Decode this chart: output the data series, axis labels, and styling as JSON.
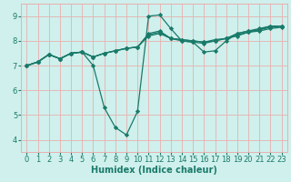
{
  "bg_color": "#cff0ec",
  "grid_color": "#e8b0b0",
  "line_color": "#1a7a6a",
  "line_width": 0.9,
  "marker": "D",
  "marker_size": 2.2,
  "xlabel": "Humidex (Indice chaleur)",
  "xlabel_fontsize": 7,
  "tick_fontsize": 6,
  "xlim": [
    -0.5,
    23.5
  ],
  "ylim": [
    3.5,
    9.5
  ],
  "xticks": [
    0,
    1,
    2,
    3,
    4,
    5,
    6,
    7,
    8,
    9,
    10,
    11,
    12,
    13,
    14,
    15,
    16,
    17,
    18,
    19,
    20,
    21,
    22,
    23
  ],
  "yticks": [
    4,
    5,
    6,
    7,
    8,
    9
  ],
  "series": [
    {
      "x": [
        0,
        1,
        2,
        3,
        4,
        5,
        6,
        7,
        8,
        9,
        10,
        11,
        12,
        13,
        14,
        15,
        16,
        17,
        18,
        19,
        20,
        21,
        22,
        23
      ],
      "y": [
        7.0,
        7.15,
        7.45,
        7.28,
        7.5,
        7.55,
        7.0,
        5.3,
        4.5,
        4.2,
        5.15,
        9.0,
        9.05,
        8.5,
        8.0,
        7.95,
        7.55,
        7.6,
        8.0,
        8.3,
        8.4,
        8.5,
        8.6,
        8.6
      ]
    },
    {
      "x": [
        0,
        1,
        2,
        3,
        4,
        5,
        6,
        7,
        8,
        9,
        10,
        11,
        12,
        13,
        14,
        15,
        16,
        17,
        18,
        19,
        20,
        21,
        22,
        23
      ],
      "y": [
        7.0,
        7.15,
        7.45,
        7.28,
        7.5,
        7.55,
        7.35,
        7.5,
        7.6,
        7.7,
        7.75,
        8.3,
        8.4,
        8.1,
        8.05,
        8.0,
        7.95,
        8.05,
        8.1,
        8.3,
        8.4,
        8.45,
        8.6,
        8.6
      ]
    },
    {
      "x": [
        0,
        1,
        2,
        3,
        4,
        5,
        6,
        7,
        8,
        9,
        10,
        11,
        12,
        13,
        14,
        15,
        16,
        17,
        18,
        19,
        20,
        21,
        22,
        23
      ],
      "y": [
        7.0,
        7.15,
        7.45,
        7.28,
        7.5,
        7.55,
        7.35,
        7.5,
        7.6,
        7.7,
        7.75,
        8.25,
        8.35,
        8.1,
        8.05,
        8.0,
        7.95,
        8.0,
        8.1,
        8.25,
        8.35,
        8.45,
        8.55,
        8.6
      ]
    },
    {
      "x": [
        0,
        1,
        2,
        3,
        4,
        5,
        6,
        7,
        8,
        9,
        10,
        11,
        12,
        13,
        14,
        15,
        16,
        17,
        18,
        19,
        20,
        21,
        22,
        23
      ],
      "y": [
        7.0,
        7.15,
        7.45,
        7.28,
        7.5,
        7.55,
        7.35,
        7.5,
        7.6,
        7.7,
        7.75,
        8.2,
        8.3,
        8.1,
        8.0,
        7.95,
        7.9,
        8.0,
        8.1,
        8.2,
        8.35,
        8.4,
        8.5,
        8.55
      ]
    }
  ]
}
